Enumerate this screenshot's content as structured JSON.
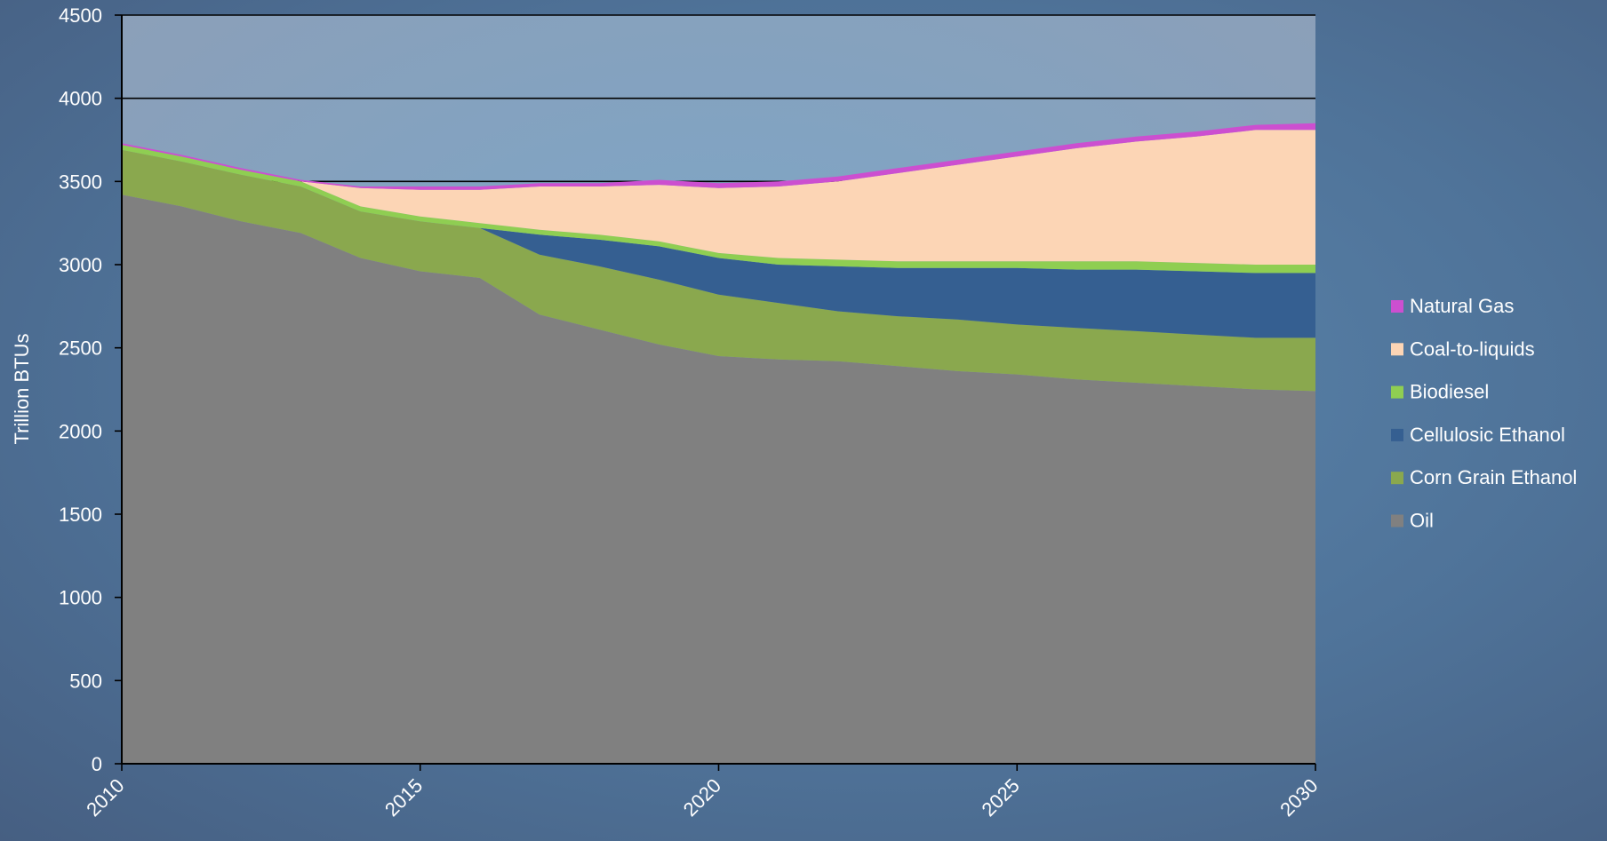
{
  "chart_data": {
    "type": "area",
    "stacked": true,
    "title": "",
    "xlabel": "",
    "ylabel": "Trillion BTUs",
    "xlim": [
      2010,
      2030
    ],
    "ylim": [
      0,
      4500
    ],
    "x_ticks": [
      "2010",
      "2015",
      "2020",
      "2025",
      "2030"
    ],
    "y_ticks": [
      "0",
      "500",
      "1000",
      "1500",
      "2000",
      "2500",
      "3000",
      "3500",
      "4000",
      "4500"
    ],
    "grid": "horizontal at 3500, 4000, 4500",
    "legend_position": "right",
    "x": [
      2010,
      2011,
      2012,
      2013,
      2014,
      2015,
      2016,
      2017,
      2018,
      2019,
      2020,
      2021,
      2022,
      2023,
      2024,
      2025,
      2026,
      2027,
      2028,
      2029,
      2030
    ],
    "series": [
      {
        "name": "Oil",
        "color": "#808080",
        "values": [
          3420,
          3350,
          3260,
          3190,
          3040,
          2960,
          2920,
          2700,
          2610,
          2520,
          2450,
          2430,
          2420,
          2390,
          2360,
          2340,
          2310,
          2290,
          2270,
          2250,
          2240
        ]
      },
      {
        "name": "Corn Grain Ethanol",
        "color": "#8aa84e",
        "values": [
          270,
          270,
          280,
          280,
          280,
          300,
          300,
          360,
          380,
          390,
          370,
          340,
          300,
          300,
          310,
          300,
          310,
          310,
          310,
          310,
          320
        ]
      },
      {
        "name": "Cellulosic Ethanol",
        "color": "#355f91",
        "values": [
          0,
          0,
          0,
          0,
          0,
          0,
          0,
          120,
          160,
          200,
          220,
          230,
          270,
          290,
          310,
          340,
          350,
          370,
          380,
          390,
          390
        ]
      },
      {
        "name": "Biodiesel",
        "color": "#8fce52",
        "values": [
          30,
          30,
          30,
          30,
          30,
          30,
          30,
          30,
          30,
          30,
          30,
          40,
          40,
          40,
          40,
          40,
          50,
          50,
          50,
          50,
          50
        ]
      },
      {
        "name": "Coal-to-liquids",
        "color": "#fcd5b5",
        "values": [
          0,
          0,
          0,
          0,
          110,
          160,
          200,
          260,
          290,
          340,
          390,
          430,
          470,
          530,
          580,
          630,
          680,
          720,
          760,
          810,
          810
        ]
      },
      {
        "name": "Natural Gas",
        "color": "#cc4fd0",
        "values": [
          10,
          10,
          10,
          10,
          10,
          20,
          20,
          20,
          20,
          30,
          30,
          30,
          30,
          30,
          30,
          30,
          30,
          30,
          30,
          30,
          40
        ]
      }
    ],
    "legend_order": [
      "Natural Gas",
      "Coal-to-liquids",
      "Biodiesel",
      "Cellulosic Ethanol",
      "Corn Grain Ethanol",
      "Oil"
    ]
  }
}
